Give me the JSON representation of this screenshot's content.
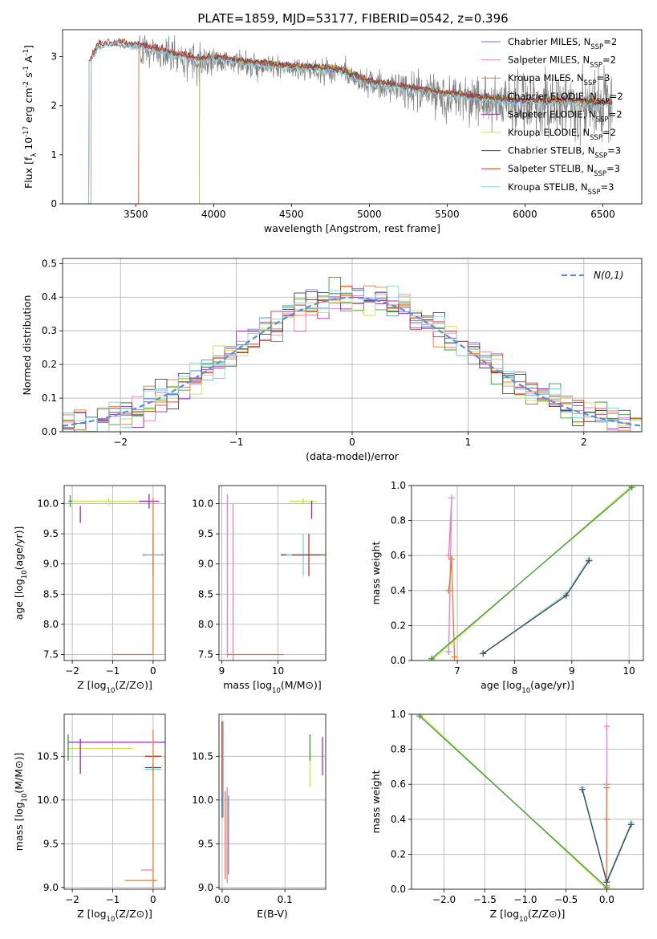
{
  "figure_title": "PLATE=1859, MJD=53177, FIBERID=0542, z=0.396",
  "colors": {
    "Chabrier MILES": "#5b83d6",
    "Salpeter MILES": "#e87fc0",
    "Kroupa MILES": "#e8782a",
    "Chabrier ELODIE": "#3a9a3a",
    "Salpeter ELODIE": "#9b28b5",
    "Kroupa ELODIE": "#c8e04a",
    "Chabrier STELIB": "#444444",
    "Salpeter STELIB": "#c0392b",
    "Kroupa STELIB": "#7fd3e0",
    "normal": "#5b8fd6",
    "data": "#808080"
  },
  "chart_data": [
    {
      "id": "spectrum",
      "type": "line",
      "title": "PLATE=1859, MJD=53177, FIBERID=0542, z=0.396",
      "xlabel": "wavelength [Angstrom, rest frame]",
      "ylabel": "Flux [f_λ 10^-17 erg cm^-2 s^-1 A^-1]",
      "xlim": [
        3030,
        6750
      ],
      "ylim": [
        0,
        3.55
      ],
      "xticks": [
        3500,
        4000,
        4500,
        5000,
        5500,
        6000,
        6500
      ],
      "yticks": [
        0,
        1,
        2,
        3
      ],
      "grid": false,
      "legend": "upper right",
      "continuum": [
        [
          3200,
          2.85
        ],
        [
          3260,
          3.2
        ],
        [
          3350,
          3.25
        ],
        [
          3500,
          3.2
        ],
        [
          3700,
          3.05
        ],
        [
          3900,
          2.9
        ],
        [
          4000,
          2.95
        ],
        [
          4200,
          2.85
        ],
        [
          4500,
          2.75
        ],
        [
          4800,
          2.7
        ],
        [
          5000,
          2.45
        ],
        [
          5300,
          2.3
        ],
        [
          5500,
          2.2
        ],
        [
          5800,
          2.1
        ],
        [
          6000,
          2.05
        ],
        [
          6300,
          2.05
        ],
        [
          6550,
          2.0
        ]
      ],
      "series": [
        {
          "name": "Chabrier MILES, N_SSP=2",
          "start": 3520,
          "end": 6560
        },
        {
          "name": "Salpeter MILES, N_SSP=2",
          "start": 3520,
          "end": 6560
        },
        {
          "name": "Kroupa MILES, N_SSP=3",
          "start": 3520,
          "end": 6560
        },
        {
          "name": "Chabrier ELODIE, N_SSP=2",
          "start": 3910,
          "end": 6560
        },
        {
          "name": "Salpeter ELODIE, N_SSP=2",
          "start": 3910,
          "end": 6560
        },
        {
          "name": "Kroupa ELODIE, N_SSP=2",
          "start": 3910,
          "end": 6560
        },
        {
          "name": "Chabrier STELIB, N_SSP=3",
          "start": 3200,
          "end": 6560
        },
        {
          "name": "Salpeter STELIB, N_SSP=3",
          "start": 3200,
          "end": 6560
        },
        {
          "name": "Kroupa STELIB, N_SSP=3",
          "start": 3200,
          "end": 6560
        }
      ]
    },
    {
      "id": "residuals",
      "type": "histogram",
      "xlabel": "(data-model)/error",
      "ylabel": "Normed distribution",
      "xlim": [
        -2.5,
        2.5
      ],
      "ylim": [
        0,
        0.515
      ],
      "xticks": [
        -2,
        -1,
        0,
        1,
        2
      ],
      "yticks": [
        0.0,
        0.1,
        0.2,
        0.3,
        0.4,
        0.5
      ],
      "grid": true,
      "legend": "upper right",
      "legend_entry": "N(0,1)",
      "bin_width": 0.1
    },
    {
      "id": "z-age",
      "type": "errorbar",
      "xlabel": "Z [log10(Z/Z⊙)]",
      "ylabel": "age [log10(age/yr)]",
      "xlim": [
        -2.2,
        0.3
      ],
      "ylim": [
        7.4,
        10.3
      ],
      "xticks": [
        -2,
        -1,
        0
      ],
      "yticks": [
        7.5,
        8.0,
        8.5,
        9.0,
        9.5,
        10.0
      ],
      "grid": true,
      "points": [
        {
          "model": "Kroupa ELODIE",
          "x": -1.1,
          "xerr": 1.0,
          "y": 10.04,
          "yerr": 0.06
        },
        {
          "model": "Salpeter ELODIE",
          "x": -0.1,
          "xerr": 0.25,
          "y": 10.04,
          "yerr": 0.12
        },
        {
          "model": "Salpeter ELODIE",
          "x": -1.8,
          "xerr": 0.0,
          "y": 9.82,
          "yerr": 0.14
        },
        {
          "model": "Chabrier ELODIE",
          "x": -2.05,
          "xerr": 0.04,
          "y": 10.04,
          "yerr": 0.1
        },
        {
          "model": "Chabrier STELIB",
          "x": 0.0,
          "xerr": 0.25,
          "y": 9.15,
          "yerr": 0.35
        },
        {
          "model": "Kroupa STELIB",
          "x": 0.0,
          "xerr": 0.22,
          "y": 9.15,
          "yerr": 0.33
        },
        {
          "model": "Kroupa MILES",
          "x": 0.0,
          "xerr": 0.0,
          "y": 8.8,
          "yerr": 1.3
        },
        {
          "model": "Kroupa MILES",
          "x": -0.5,
          "xerr": 0.5,
          "y": 7.5,
          "yerr": 0.0
        }
      ]
    },
    {
      "id": "mass-age",
      "type": "errorbar",
      "xlabel": "mass [log10(M/M⊙)]",
      "ylabel": "",
      "xlim": [
        8.95,
        10.85
      ],
      "ylim": [
        7.4,
        10.3
      ],
      "xticks": [
        9,
        10
      ],
      "yticks": [
        7.5,
        8.0,
        8.5,
        9.0,
        9.5,
        10.0
      ],
      "grid": true,
      "points": [
        {
          "model": "Salpeter MILES",
          "x": 9.1,
          "xerr": 0.0,
          "y": 8.8,
          "yerr": 1.35
        },
        {
          "model": "Salpeter MILES",
          "x": 9.2,
          "xerr": 0.0,
          "y": 8.7,
          "yerr": 1.3
        },
        {
          "model": "Kroupa MILES",
          "x": 9.6,
          "xerr": 0.5,
          "y": 7.5,
          "yerr": 0.0
        },
        {
          "model": "Kroupa ELODIE",
          "x": 10.45,
          "xerr": 0.25,
          "y": 10.04,
          "yerr": 0.05
        },
        {
          "model": "Salpeter ELODIE",
          "x": 10.6,
          "xerr": 0.0,
          "y": 9.9,
          "yerr": 0.15
        },
        {
          "model": "Chabrier STELIB",
          "x": 10.4,
          "xerr": 0.35,
          "y": 9.15,
          "yerr": 0.0
        },
        {
          "model": "Kroupa STELIB",
          "x": 10.45,
          "xerr": 0.3,
          "y": 9.15,
          "yerr": 0.35
        },
        {
          "model": "Salpeter STELIB",
          "x": 10.55,
          "xerr": 0.3,
          "y": 9.15,
          "yerr": 0.35
        }
      ]
    },
    {
      "id": "age-weight",
      "type": "line",
      "xlabel": "age [log10(age/yr)]",
      "ylabel": "mass weight",
      "xlim": [
        6.2,
        10.25
      ],
      "ylim": [
        0,
        1.0
      ],
      "xticks": [
        7,
        8,
        9,
        10
      ],
      "yticks": [
        0.0,
        0.2,
        0.4,
        0.6,
        0.8,
        1.0
      ],
      "grid": true,
      "series": [
        {
          "model": "Salpeter MILES",
          "x": [
            6.85,
            6.9,
            6.85
          ],
          "y": [
            0.05,
            0.93,
            0.6
          ]
        },
        {
          "model": "Kroupa MILES",
          "x": [
            6.85,
            6.9,
            6.95
          ],
          "y": [
            0.4,
            0.58,
            0.02
          ]
        },
        {
          "model": "Kroupa ELODIE",
          "x": [
            6.55,
            10.05
          ],
          "y": [
            0.0,
            1.0
          ]
        },
        {
          "model": "Chabrier ELODIE",
          "x": [
            6.55,
            10.05
          ],
          "y": [
            0.01,
            0.99
          ]
        },
        {
          "model": "Kroupa STELIB",
          "x": [
            7.45,
            8.9,
            9.3
          ],
          "y": [
            0.04,
            0.38,
            0.58
          ]
        },
        {
          "model": "Chabrier STELIB",
          "x": [
            7.45,
            8.9,
            9.3
          ],
          "y": [
            0.04,
            0.37,
            0.57
          ]
        }
      ]
    },
    {
      "id": "z-mass",
      "type": "errorbar",
      "xlabel": "Z [log10(Z/Z⊙)]",
      "ylabel": "mass [log10(M/M⊙)]",
      "xlim": [
        -2.2,
        0.3
      ],
      "ylim": [
        8.98,
        10.98
      ],
      "xticks": [
        -2,
        -1,
        0
      ],
      "yticks": [
        9.0,
        9.5,
        10.0,
        10.5
      ],
      "grid": true,
      "points": [
        {
          "model": "Salpeter ELODIE",
          "x": -0.9,
          "xerr": 1.2,
          "y": 10.66,
          "yerr": 0.0
        },
        {
          "model": "Kroupa ELODIE",
          "x": -1.3,
          "xerr": 0.8,
          "y": 10.59,
          "yerr": 0.0
        },
        {
          "model": "Chabrier ELODIE",
          "x": -2.1,
          "xerr": 0.0,
          "y": 10.6,
          "yerr": 0.15
        },
        {
          "model": "Salpeter ELODIE",
          "x": -1.8,
          "xerr": 0.0,
          "y": 10.5,
          "yerr": 0.2
        },
        {
          "model": "Salpeter STELIB",
          "x": 0.0,
          "xerr": 0.2,
          "y": 10.5,
          "yerr": 0.0
        },
        {
          "model": "Chabrier STELIB",
          "x": 0.0,
          "xerr": 0.2,
          "y": 10.37,
          "yerr": 0.05
        },
        {
          "model": "Kroupa STELIB",
          "x": 0.0,
          "xerr": 0.2,
          "y": 10.35,
          "yerr": 0.05
        },
        {
          "model": "Kroupa MILES",
          "x": 0.0,
          "xerr": 0.0,
          "y": 9.9,
          "yerr": 0.9
        },
        {
          "model": "Salpeter MILES",
          "x": -0.15,
          "xerr": 0.15,
          "y": 9.2,
          "yerr": 0.0
        },
        {
          "model": "Kroupa MILES",
          "x": -0.3,
          "xerr": 0.4,
          "y": 9.08,
          "yerr": 0.0
        }
      ]
    },
    {
      "id": "ebv-mass",
      "type": "errorbar",
      "xlabel": "E(B-V)",
      "ylabel": "",
      "xlim": [
        -0.005,
        0.165
      ],
      "ylim": [
        8.98,
        10.98
      ],
      "xticks": [
        0.0,
        0.1
      ],
      "yticks": [
        9.0,
        9.5,
        10.0,
        10.5
      ],
      "grid": true,
      "points": [
        {
          "model": "Chabrier STELIB",
          "x": 0.0,
          "xerr": 0.0,
          "y": 10.35,
          "yerr": 0.55
        },
        {
          "model": "Salpeter STELIB",
          "x": 0.0,
          "xerr": 0.0,
          "y": 10.5,
          "yerr": 0.4
        },
        {
          "model": "Kroupa STELIB",
          "x": 0.002,
          "xerr": 0.0,
          "y": 10.35,
          "yerr": 0.55
        },
        {
          "model": "Kroupa MILES",
          "x": 0.005,
          "xerr": 0.0,
          "y": 9.6,
          "yerr": 0.5
        },
        {
          "model": "Salpeter MILES",
          "x": 0.008,
          "xerr": 0.0,
          "y": 9.6,
          "yerr": 0.55
        },
        {
          "model": "Chabrier MILES",
          "x": 0.01,
          "xerr": 0.0,
          "y": 9.6,
          "yerr": 0.45
        },
        {
          "model": "Kroupa ELODIE",
          "x": 0.14,
          "xerr": 0.0,
          "y": 10.45,
          "yerr": 0.3
        },
        {
          "model": "Chabrier ELODIE",
          "x": 0.14,
          "xerr": 0.0,
          "y": 10.6,
          "yerr": 0.15
        },
        {
          "model": "Salpeter ELODIE",
          "x": 0.16,
          "xerr": 0.0,
          "y": 10.5,
          "yerr": 0.22
        }
      ]
    },
    {
      "id": "z-weight",
      "type": "line",
      "xlabel": "Z [log10(Z/Z⊙)]",
      "ylabel": "mass weight",
      "xlim": [
        -2.4,
        0.45
      ],
      "ylim": [
        0,
        1.0
      ],
      "xticks": [
        -2.0,
        -1.5,
        -1.0,
        -0.5,
        0.0
      ],
      "yticks": [
        0.0,
        0.2,
        0.4,
        0.6,
        0.8,
        1.0
      ],
      "grid": true,
      "series": [
        {
          "model": "Kroupa ELODIE",
          "x": [
            -2.3,
            0.0
          ],
          "y": [
            1.0,
            0.0
          ]
        },
        {
          "model": "Chabrier ELODIE",
          "x": [
            -2.3,
            0.0
          ],
          "y": [
            0.99,
            0.01
          ]
        },
        {
          "model": "Salpeter MILES",
          "x": [
            0.0,
            0.0,
            0.0
          ],
          "y": [
            0.05,
            0.93,
            0.6
          ]
        },
        {
          "model": "Kroupa MILES",
          "x": [
            0.0,
            0.0,
            0.0
          ],
          "y": [
            0.02,
            0.4,
            0.58
          ]
        },
        {
          "model": "Kroupa STELIB",
          "x": [
            -0.3,
            0.0,
            0.3
          ],
          "y": [
            0.58,
            0.05,
            0.38
          ]
        },
        {
          "model": "Chabrier STELIB",
          "x": [
            -0.3,
            0.0,
            0.3
          ],
          "y": [
            0.57,
            0.04,
            0.37
          ]
        }
      ]
    }
  ]
}
